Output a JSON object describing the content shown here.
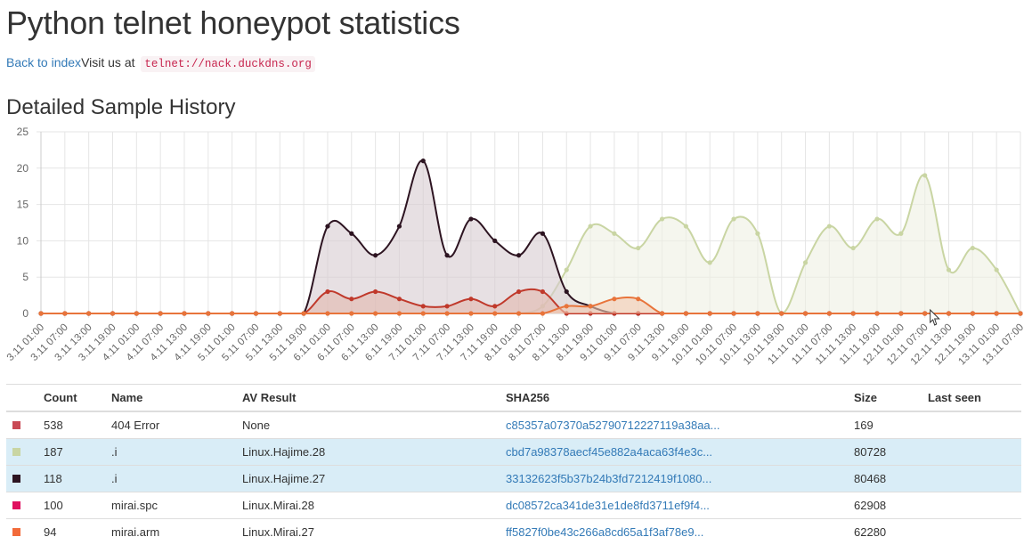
{
  "page": {
    "title": "Python telnet honeypot statistics",
    "back_link": "Back to index",
    "visit_text": "Visit us at",
    "telnet_address": "telnet://nack.duckdns.org",
    "section_title": "Detailed Sample History"
  },
  "chart_data": {
    "type": "area",
    "ylim": [
      0,
      25
    ],
    "yticks": [
      0,
      5,
      10,
      15,
      20,
      25
    ],
    "grid": true,
    "x": [
      "3.11 01:00",
      "3.11 07:00",
      "3.11 13:00",
      "3.11 19:00",
      "4.11 01:00",
      "4.11 07:00",
      "4.11 13:00",
      "4.11 19:00",
      "5.11 01:00",
      "5.11 07:00",
      "5.11 13:00",
      "5.11 19:00",
      "6.11 01:00",
      "6.11 07:00",
      "6.11 13:00",
      "6.11 19:00",
      "7.11 01:00",
      "7.11 07:00",
      "7.11 13:00",
      "7.11 19:00",
      "8.11 01:00",
      "8.11 07:00",
      "8.11 13:00",
      "8.11 19:00",
      "9.11 01:00",
      "9.11 07:00",
      "9.11 13:00",
      "9.11 19:00",
      "10.11 01:00",
      "10.11 07:00",
      "10.11 13:00",
      "10.11 19:00",
      "11.11 01:00",
      "11.11 07:00",
      "11.11 13:00",
      "11.11 19:00",
      "12.11 01:00",
      "12.11 07:00",
      "12.11 13:00",
      "12.11 19:00",
      "13.11 01:00",
      "13.11 07:00"
    ],
    "series": [
      {
        "color": "#c9d5a3",
        "fill": "#eef0e2",
        "values": [
          0,
          0,
          0,
          0,
          0,
          0,
          0,
          0,
          0,
          0,
          0,
          0,
          0,
          0,
          0,
          0,
          0,
          0,
          0,
          0,
          0,
          1,
          6,
          12,
          11,
          9,
          13,
          12,
          7,
          13,
          11,
          0,
          7,
          12,
          9,
          13,
          11,
          19,
          6,
          9,
          6,
          0
        ]
      },
      {
        "color": "#2d1421",
        "fill": "#d7ccd0",
        "values": [
          0,
          0,
          0,
          0,
          0,
          0,
          0,
          0,
          0,
          0,
          0,
          0,
          12,
          11,
          8,
          12,
          21,
          8,
          13,
          10,
          8,
          11,
          3,
          1,
          0,
          0,
          0,
          0,
          0,
          0,
          0,
          0,
          0,
          0,
          0,
          0,
          0,
          0,
          0,
          0,
          0,
          0
        ]
      },
      {
        "color": "#c0392b",
        "fill": "#e3b7ae",
        "values": [
          0,
          0,
          0,
          0,
          0,
          0,
          0,
          0,
          0,
          0,
          0,
          0,
          3,
          2,
          3,
          2,
          1,
          1,
          2,
          1,
          3,
          3,
          0,
          0,
          0,
          0,
          0,
          0,
          0,
          0,
          0,
          0,
          0,
          0,
          0,
          0,
          0,
          0,
          0,
          0,
          0,
          0
        ]
      },
      {
        "color": "#e8743b",
        "fill": "#f2c9b0",
        "values": [
          0,
          0,
          0,
          0,
          0,
          0,
          0,
          0,
          0,
          0,
          0,
          0,
          0,
          0,
          0,
          0,
          0,
          0,
          0,
          0,
          0,
          0,
          1,
          1,
          2,
          2,
          0,
          0,
          0,
          0,
          0,
          0,
          0,
          0,
          0,
          0,
          0,
          0,
          0,
          0,
          0,
          0
        ]
      }
    ]
  },
  "table": {
    "headers": [
      "",
      "Count",
      "Name",
      "AV Result",
      "SHA256",
      "Size",
      "Last seen"
    ],
    "rows": [
      {
        "color": "#c94a55",
        "count": "538",
        "name": "404 Error",
        "av": "None",
        "sha": "c85357a07370a52790712227119a38aa...",
        "size": "169",
        "last_seen": "",
        "highlight": false
      },
      {
        "color": "#c9d5a3",
        "count": "187",
        "name": ".i",
        "av": "Linux.Hajime.28",
        "sha": "cbd7a98378aecf45e882a4aca63f4e3c...",
        "size": "80728",
        "last_seen": "",
        "highlight": true
      },
      {
        "color": "#2d1421",
        "count": "118",
        "name": ".i",
        "av": "Linux.Hajime.27",
        "sha": "33132623f5b37b24b3fd7212419f1080...",
        "size": "80468",
        "last_seen": "",
        "highlight": true
      },
      {
        "color": "#e0105f",
        "count": "100",
        "name": "mirai.spc",
        "av": "Linux.Mirai.28",
        "sha": "dc08572ca341de31e1de8fd3711ef9f4...",
        "size": "62908",
        "last_seen": "",
        "highlight": false
      },
      {
        "color": "#f26b3a",
        "count": "94",
        "name": "mirai.arm",
        "av": "Linux.Mirai.27",
        "sha": "ff5827f0be43c266a8cd65a1f3af78e9...",
        "size": "62280",
        "last_seen": "",
        "highlight": false
      }
    ]
  }
}
